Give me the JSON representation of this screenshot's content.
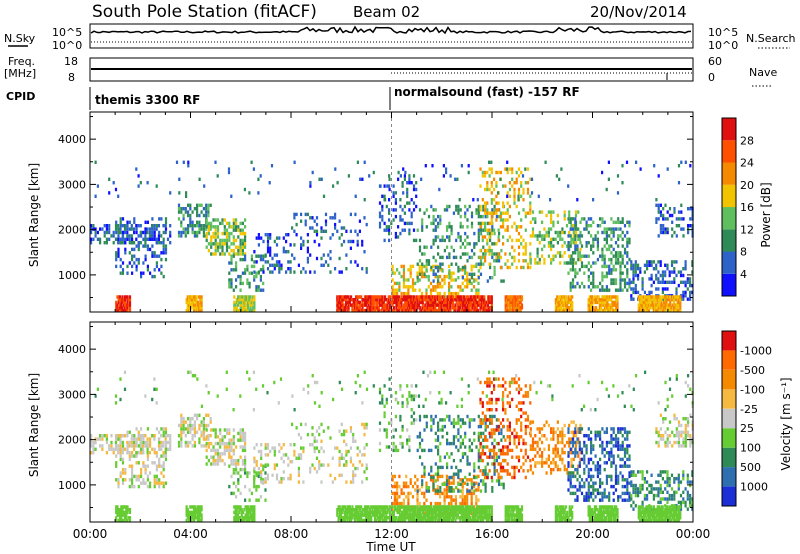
{
  "header": {
    "station": "South Pole Station (fitACF)",
    "beam": "Beam 02",
    "date": "20/Nov/2014"
  },
  "nsky_panel": {
    "left_label": "N.Sky",
    "left_ticks": [
      "10^5",
      "10^0"
    ],
    "right_label": "N.Search",
    "right_ticks": [
      "10^5",
      "10^0"
    ]
  },
  "freq_panel": {
    "left_label_lines": [
      "Freq.",
      "[MHz]"
    ],
    "left_ticks": [
      "18",
      "8"
    ],
    "right_label": "Nave",
    "right_ticks": [
      "60",
      "0"
    ]
  },
  "cpid": {
    "label": "CPID",
    "modes": [
      {
        "name": "themis 3300 RF",
        "start_hour": 0
      },
      {
        "name": "normalsound (fast) -157 RF",
        "start_hour": 12
      }
    ]
  },
  "chart_data": [
    {
      "type": "heatmap",
      "name": "power",
      "ylabel": "Slant Range [km]",
      "yticks": [
        1000,
        2000,
        3000,
        4000
      ],
      "ylim": [
        180,
        4600
      ],
      "xlim": [
        0,
        24
      ],
      "colorbar": {
        "label": "Power [dB]",
        "ticks": [
          "4",
          "8",
          "12",
          "16",
          "20",
          "24",
          "28"
        ],
        "colors": [
          "#1010ff",
          "#2d63c8",
          "#2e8b57",
          "#5fbf5f",
          "#f2c400",
          "#f58a00",
          "#ff5000",
          "#e01010"
        ]
      }
    },
    {
      "type": "heatmap",
      "name": "velocity",
      "ylabel": "Slant Range [km]",
      "yticks": [
        1000,
        2000,
        3000,
        4000
      ],
      "ylim": [
        180,
        4600
      ],
      "xlim": [
        0,
        24
      ],
      "xlabel": "Time UT",
      "xticks": [
        "00:00",
        "04:00",
        "08:00",
        "12:00",
        "16:00",
        "20:00",
        "00:00"
      ],
      "colorbar": {
        "label": "Velocity [m s⁻¹]",
        "ticks": [
          "1000",
          "500",
          "100",
          "25",
          "-25",
          "-100",
          "-500",
          "-1000"
        ],
        "colors": [
          "#1a2fd6",
          "#2e6fb0",
          "#2e8b57",
          "#66cc33",
          "#c8c8c8",
          "#f5b942",
          "#f58a00",
          "#ff6a00",
          "#e01010"
        ]
      }
    }
  ]
}
